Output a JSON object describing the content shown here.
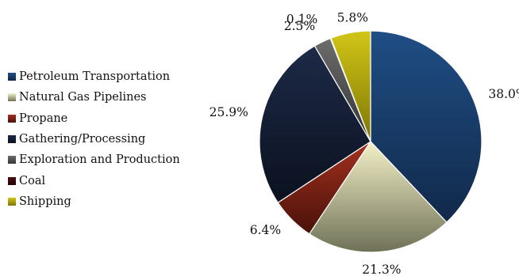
{
  "chart_data": {
    "type": "pie",
    "legend_position": "left",
    "slices": [
      {
        "name": "Petroleum Transportation",
        "value": 38.0,
        "label": "38.0%",
        "color": "#1f4e85",
        "color_dark": "#11294a"
      },
      {
        "name": "Natural Gas Pipelines",
        "value": 21.3,
        "label": "21.3%",
        "color": "#f4f1c8",
        "color_dark": "#6f7157"
      },
      {
        "name": "Propane",
        "value": 6.4,
        "label": "6.4%",
        "color": "#a3311f",
        "color_dark": "#4a1109"
      },
      {
        "name": "Gathering/Processing",
        "value": 25.9,
        "label": "25.9%",
        "color": "#1d2a47",
        "color_dark": "#0b111f"
      },
      {
        "name": "Exploration and Production",
        "value": 2.5,
        "label": "2.5%",
        "color": "#6c6c6c",
        "color_dark": "#343434"
      },
      {
        "name": "Coal",
        "value": 0.1,
        "label": "0.1%",
        "color": "#4a0d0d",
        "color_dark": "#220404"
      },
      {
        "name": "Shipping",
        "value": 5.8,
        "label": "5.8%",
        "color": "#d2c617",
        "color_dark": "#7e7606"
      }
    ]
  }
}
